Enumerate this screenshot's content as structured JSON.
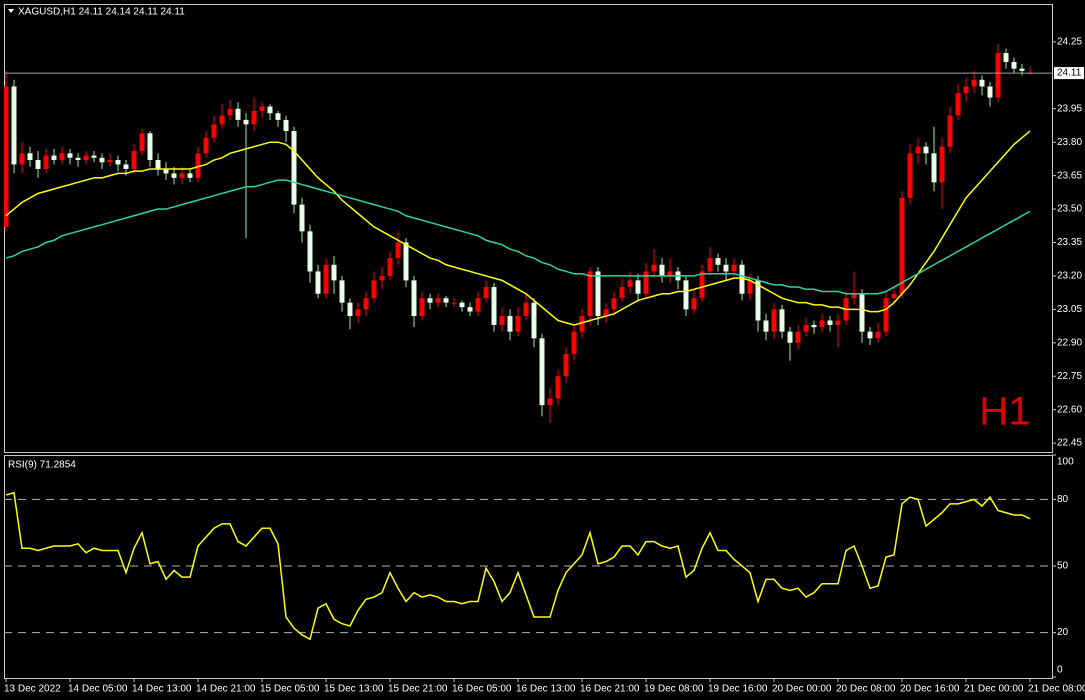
{
  "chart_data": [
    {
      "type": "candlestick",
      "title": "XAGUSD,H1  24.11 24.14 24.11 24.11",
      "watermark": "H1",
      "categories": [
        "13 Dec 2022",
        null,
        null,
        null,
        null,
        null,
        null,
        null,
        "14 Dec 05:00",
        null,
        null,
        null,
        null,
        null,
        null,
        null,
        "14 Dec 13:00",
        null,
        null,
        null,
        null,
        null,
        null,
        null,
        "14 Dec 21:00",
        null,
        null,
        null,
        null,
        null,
        null,
        null,
        "15 Dec 05:00",
        null,
        null,
        null,
        null,
        null,
        null,
        null,
        "15 Dec 13:00",
        null,
        null,
        null,
        null,
        null,
        null,
        null,
        "15 Dec 21:00",
        null,
        null,
        null,
        null,
        null,
        null,
        null,
        "16 Dec 05:00",
        null,
        null,
        null,
        null,
        null,
        null,
        null,
        "16 Dec 13:00",
        null,
        null,
        null,
        null,
        null,
        null,
        null,
        "16 Dec 21:00",
        null,
        null,
        null,
        null,
        null,
        null,
        null,
        "19 Dec 08:00",
        null,
        null,
        null,
        null,
        null,
        null,
        null,
        "19 Dec 16:00",
        null,
        null,
        null,
        null,
        null,
        null,
        null,
        "20 Dec 00:00",
        null,
        null,
        null,
        null,
        null,
        null,
        null,
        "20 Dec 08:00",
        null,
        null,
        null,
        null,
        null,
        null,
        null,
        "20 Dec 16:00",
        null,
        null,
        null,
        null,
        null,
        null,
        null,
        "21 Dec 00:00",
        null,
        null,
        null,
        null,
        null,
        null,
        null,
        "21 Dec 08:00"
      ],
      "open": [
        23.42,
        24.05,
        23.7,
        23.75,
        23.72,
        23.68,
        23.74,
        23.72,
        23.75,
        23.73,
        23.72,
        23.74,
        23.73,
        23.71,
        23.72,
        23.7,
        23.68,
        23.76,
        23.84,
        23.72,
        23.68,
        23.66,
        23.64,
        23.66,
        23.64,
        23.75,
        23.82,
        23.88,
        23.92,
        23.95,
        23.9,
        23.88,
        23.94,
        23.96,
        23.93,
        23.9,
        23.85,
        23.52,
        23.4,
        23.22,
        23.12,
        23.25,
        23.18,
        23.08,
        23.02,
        23.05,
        23.1,
        23.18,
        23.2,
        23.28,
        23.35,
        23.18,
        23.02,
        23.1,
        23.08,
        23.1,
        23.08,
        23.08,
        23.06,
        23.04,
        23.1,
        23.15,
        22.98,
        23.02,
        22.95,
        23.02,
        23.08,
        22.92,
        22.62,
        22.65,
        22.75,
        22.85,
        22.95,
        23.02,
        23.22,
        23.02,
        23.05,
        23.1,
        23.15,
        23.18,
        23.12,
        23.22,
        23.25,
        23.2,
        23.22,
        23.18,
        23.05,
        23.1,
        23.22,
        23.28,
        23.25,
        23.22,
        23.25,
        23.12,
        23.18,
        23.0,
        22.95,
        23.05,
        22.95,
        22.9,
        22.95,
        22.98,
        22.97,
        23.0,
        22.98,
        23.0,
        23.1,
        23.12,
        22.95,
        22.92,
        22.95,
        23.1,
        23.12,
        23.55,
        23.75,
        23.78,
        23.75,
        23.62,
        23.78,
        23.92,
        24.02,
        24.05,
        24.08,
        24.05,
        24.0,
        24.2,
        24.16,
        24.13,
        24.11
      ],
      "high": [
        24.12,
        24.08,
        23.8,
        23.78,
        23.76,
        23.77,
        23.77,
        23.78,
        23.77,
        23.75,
        23.76,
        23.76,
        23.75,
        23.75,
        23.74,
        23.72,
        23.79,
        23.86,
        23.85,
        23.75,
        23.71,
        23.69,
        23.69,
        23.68,
        23.78,
        23.85,
        23.92,
        23.97,
        23.99,
        23.98,
        23.93,
        24.0,
        23.98,
        23.97,
        23.94,
        23.92,
        23.87,
        23.55,
        23.43,
        23.25,
        23.28,
        23.29,
        23.2,
        23.1,
        23.08,
        23.13,
        23.22,
        23.24,
        23.31,
        23.4,
        23.37,
        23.2,
        23.13,
        23.12,
        23.12,
        23.11,
        23.1,
        23.09,
        23.08,
        23.13,
        23.18,
        23.17,
        23.06,
        23.05,
        23.06,
        23.12,
        23.1,
        22.94,
        22.7,
        22.78,
        22.88,
        22.98,
        23.05,
        23.24,
        23.24,
        23.08,
        23.13,
        23.19,
        23.22,
        23.21,
        23.26,
        23.32,
        23.28,
        23.28,
        23.24,
        23.2,
        23.14,
        23.25,
        23.33,
        23.3,
        23.28,
        23.28,
        23.27,
        23.21,
        23.2,
        23.03,
        23.08,
        23.07,
        22.97,
        22.98,
        23.01,
        23.0,
        23.03,
        23.02,
        23.03,
        23.13,
        23.22,
        23.14,
        22.97,
        22.99,
        23.13,
        23.15,
        23.58,
        23.79,
        23.82,
        23.8,
        23.87,
        23.82,
        23.96,
        24.06,
        24.09,
        24.12,
        24.1,
        24.07,
        24.24,
        24.22,
        24.18,
        24.15,
        24.14
      ],
      "low": [
        23.4,
        23.66,
        23.66,
        23.69,
        23.64,
        23.66,
        23.7,
        23.7,
        23.7,
        23.69,
        23.7,
        23.71,
        23.68,
        23.69,
        23.67,
        23.65,
        23.66,
        23.74,
        23.69,
        23.65,
        23.63,
        23.61,
        23.61,
        23.62,
        23.62,
        23.73,
        23.8,
        23.86,
        23.9,
        23.87,
        23.37,
        23.85,
        23.91,
        23.9,
        23.87,
        23.8,
        23.48,
        23.35,
        23.17,
        23.1,
        23.1,
        23.12,
        23.04,
        22.96,
        22.99,
        23.02,
        23.08,
        23.14,
        23.18,
        23.25,
        23.15,
        22.97,
        23.0,
        23.05,
        23.06,
        23.06,
        23.06,
        23.04,
        23.02,
        23.02,
        23.08,
        22.95,
        22.95,
        22.91,
        22.93,
        23.0,
        22.88,
        22.57,
        22.54,
        22.62,
        22.72,
        22.82,
        22.92,
        22.98,
        22.98,
        22.99,
        23.02,
        23.08,
        23.12,
        23.09,
        23.1,
        23.19,
        23.17,
        23.17,
        23.14,
        23.02,
        23.03,
        23.08,
        23.2,
        23.22,
        23.18,
        23.19,
        23.09,
        23.09,
        22.95,
        22.91,
        22.92,
        22.92,
        22.82,
        22.87,
        22.93,
        22.94,
        22.95,
        22.95,
        22.88,
        22.98,
        23.07,
        22.9,
        22.89,
        22.9,
        22.93,
        23.08,
        23.1,
        23.52,
        23.7,
        23.7,
        23.58,
        23.5,
        23.75,
        23.9,
        23.98,
        24.02,
        24.01,
        23.96,
        23.98,
        24.13,
        24.11,
        24.1,
        24.11
      ],
      "close": [
        24.05,
        23.7,
        23.75,
        23.72,
        23.68,
        23.74,
        23.72,
        23.75,
        23.73,
        23.72,
        23.74,
        23.73,
        23.71,
        23.72,
        23.7,
        23.68,
        23.76,
        23.84,
        23.72,
        23.68,
        23.66,
        23.64,
        23.66,
        23.64,
        23.75,
        23.82,
        23.88,
        23.92,
        23.95,
        23.9,
        23.88,
        23.94,
        23.96,
        23.93,
        23.9,
        23.85,
        23.52,
        23.4,
        23.22,
        23.12,
        23.25,
        23.18,
        23.08,
        23.02,
        23.05,
        23.1,
        23.18,
        23.2,
        23.28,
        23.35,
        23.18,
        23.02,
        23.1,
        23.08,
        23.1,
        23.08,
        23.08,
        23.06,
        23.04,
        23.1,
        23.15,
        22.98,
        23.02,
        22.95,
        23.02,
        23.08,
        22.92,
        22.62,
        22.65,
        22.75,
        22.85,
        22.95,
        23.02,
        23.22,
        23.02,
        23.05,
        23.1,
        23.15,
        23.18,
        23.12,
        23.22,
        23.25,
        23.2,
        23.22,
        23.18,
        23.05,
        23.1,
        23.22,
        23.28,
        23.25,
        23.22,
        23.25,
        23.12,
        23.18,
        23.0,
        22.95,
        23.05,
        22.95,
        22.9,
        22.95,
        22.98,
        22.97,
        23.0,
        22.98,
        23.0,
        23.1,
        23.12,
        22.95,
        22.92,
        22.95,
        23.1,
        23.12,
        23.55,
        23.75,
        23.78,
        23.75,
        23.62,
        23.78,
        23.92,
        24.02,
        24.05,
        24.08,
        24.05,
        24.0,
        24.2,
        24.16,
        24.13,
        24.12,
        24.11
      ],
      "up_color": "#ff0000",
      "down_color": "#e8ffe8",
      "wick_color": "#90ee90",
      "overlays": [
        {
          "color": "#ffff00",
          "values": [
            23.47,
            23.5,
            23.53,
            23.55,
            23.57,
            23.58,
            23.59,
            23.6,
            23.61,
            23.62,
            23.63,
            23.64,
            23.64,
            23.65,
            23.66,
            23.66,
            23.67,
            23.67,
            23.68,
            23.68,
            23.68,
            23.68,
            23.68,
            23.68,
            23.69,
            23.7,
            23.72,
            23.73,
            23.75,
            23.76,
            23.77,
            23.78,
            23.79,
            23.8,
            23.8,
            23.79,
            23.76,
            23.72,
            23.68,
            23.64,
            23.61,
            23.58,
            23.54,
            23.51,
            23.48,
            23.45,
            23.42,
            23.4,
            23.38,
            23.36,
            23.34,
            23.32,
            23.3,
            23.28,
            23.27,
            23.25,
            23.24,
            23.23,
            23.22,
            23.21,
            23.2,
            23.19,
            23.18,
            23.16,
            23.14,
            23.12,
            23.09,
            23.06,
            23.03,
            23.0,
            22.99,
            22.98,
            22.99,
            23.0,
            23.01,
            23.02,
            23.03,
            23.05,
            23.07,
            23.09,
            23.1,
            23.11,
            23.12,
            23.12,
            23.13,
            23.13,
            23.14,
            23.15,
            23.16,
            23.17,
            23.18,
            23.19,
            23.19,
            23.18,
            23.16,
            23.14,
            23.12,
            23.1,
            23.09,
            23.08,
            23.08,
            23.07,
            23.07,
            23.06,
            23.06,
            23.05,
            23.05,
            23.05,
            23.04,
            23.04,
            23.05,
            23.08,
            23.12,
            23.16,
            23.21,
            23.26,
            23.31,
            23.37,
            23.43,
            23.49,
            23.55,
            23.59,
            23.63,
            23.67,
            23.71,
            23.75,
            23.79,
            23.82,
            23.85
          ]
        },
        {
          "color": "#2ed4a0",
          "values": [
            23.28,
            23.29,
            23.31,
            23.32,
            23.33,
            23.35,
            23.36,
            23.38,
            23.39,
            23.4,
            23.41,
            23.42,
            23.43,
            23.44,
            23.45,
            23.46,
            23.47,
            23.48,
            23.49,
            23.5,
            23.5,
            23.51,
            23.52,
            23.53,
            23.54,
            23.55,
            23.56,
            23.57,
            23.58,
            23.59,
            23.6,
            23.6,
            23.61,
            23.62,
            23.63,
            23.63,
            23.62,
            23.61,
            23.6,
            23.59,
            23.58,
            23.57,
            23.56,
            23.55,
            23.54,
            23.53,
            23.52,
            23.51,
            23.5,
            23.49,
            23.47,
            23.46,
            23.45,
            23.44,
            23.43,
            23.42,
            23.41,
            23.4,
            23.39,
            23.38,
            23.36,
            23.35,
            23.34,
            23.32,
            23.31,
            23.29,
            23.28,
            23.26,
            23.25,
            23.23,
            23.22,
            23.21,
            23.21,
            23.2,
            23.2,
            23.2,
            23.2,
            23.2,
            23.2,
            23.2,
            23.2,
            23.2,
            23.2,
            23.2,
            23.2,
            23.2,
            23.2,
            23.21,
            23.21,
            23.21,
            23.21,
            23.21,
            23.2,
            23.19,
            23.18,
            23.17,
            23.16,
            23.16,
            23.15,
            23.15,
            23.14,
            23.14,
            23.13,
            23.13,
            23.13,
            23.12,
            23.12,
            23.12,
            23.12,
            23.12,
            23.13,
            23.15,
            23.17,
            23.19,
            23.21,
            23.23,
            23.25,
            23.27,
            23.29,
            23.31,
            23.33,
            23.35,
            23.37,
            23.39,
            23.41,
            23.43,
            23.45,
            23.47,
            23.49
          ]
        }
      ],
      "current_price": 24.11,
      "ylim": [
        22.41,
        24.42
      ],
      "yticks": [
        24.25,
        {
          "value": 23.95,
          "label": "23.95"
        },
        {
          "value": 23.8,
          "label": "23.80"
        },
        23.65,
        {
          "value": 23.5,
          "label": "23.50"
        },
        23.35,
        {
          "value": 23.2,
          "label": "23.20"
        },
        23.05,
        {
          "value": 22.9,
          "label": "22.90"
        },
        22.75,
        {
          "value": 22.6,
          "label": "22.60"
        },
        22.45
      ]
    },
    {
      "type": "line",
      "title": "RSI(9) 71.2854",
      "series": [
        {
          "color": "#ffff00",
          "values": [
            82,
            83,
            58,
            58,
            57,
            58,
            59,
            59,
            59,
            60,
            56,
            58,
            57,
            57,
            57,
            47,
            58,
            65,
            51,
            52,
            44,
            48,
            45,
            45,
            59,
            63,
            67,
            69,
            69,
            61,
            59,
            63,
            67,
            67,
            60,
            27,
            22,
            19,
            17,
            31,
            33,
            26,
            24,
            23,
            30,
            35,
            36,
            38,
            47,
            40,
            34,
            38,
            36,
            37,
            36,
            34,
            34,
            33,
            34,
            34,
            49,
            43,
            34,
            38,
            47,
            37,
            27,
            27,
            27,
            39,
            47,
            51,
            55,
            65,
            51,
            52,
            54,
            59,
            59,
            55,
            61,
            61,
            59,
            58,
            59,
            45,
            48,
            58,
            65,
            57,
            57,
            53,
            50,
            47,
            34,
            44,
            44,
            40,
            39,
            40,
            36,
            38,
            42,
            42,
            42,
            57,
            59,
            50,
            40,
            41,
            54,
            55,
            78,
            81,
            80,
            68,
            71,
            74,
            78,
            78,
            79,
            80,
            77,
            81,
            75,
            74,
            73,
            73,
            71.2854
          ]
        }
      ],
      "ylim": [
        0,
        100
      ],
      "yticks": [
        100,
        80,
        50,
        20,
        0
      ],
      "levels": [
        80,
        50,
        20
      ]
    }
  ]
}
